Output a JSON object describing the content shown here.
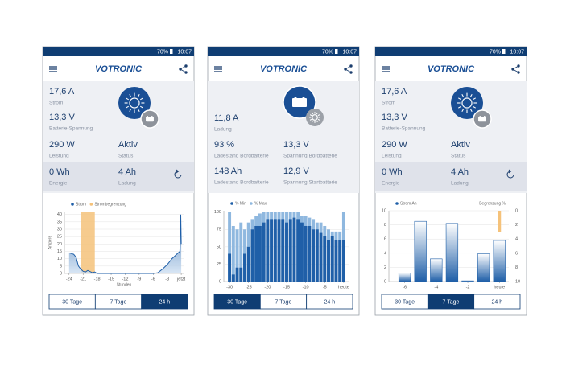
{
  "screens": [
    {
      "status": {
        "battery": "70%",
        "time": "10:07"
      },
      "header": {
        "logo": "VOTRONIC"
      },
      "metrics": [
        {
          "value": "17,6 A",
          "label": "Strom"
        },
        {
          "value": "13,3 V",
          "label": "Batterie-Spannung"
        },
        {
          "value": "290 W",
          "label": "Leistung"
        },
        {
          "value": "Aktiv",
          "label": "Status"
        },
        {
          "value": "0 Wh",
          "label": "Energie"
        },
        {
          "value": "4 Ah",
          "label": "Ladung"
        }
      ],
      "chart": {
        "type": "area",
        "ylabel": "Ampere",
        "xlabel": "Stunden",
        "series": [
          {
            "name": "Strom",
            "color": "#1f5fa8",
            "x": [
              -24,
              -23,
              -22.5,
              -22,
              -21.5,
              -21,
              -20.5,
              -20,
              -19,
              -18.5,
              -18,
              -15,
              -12,
              -9,
              -6,
              -5,
              -4,
              -3,
              -2,
              -1,
              -0.3,
              -0.1,
              0
            ],
            "values": [
              14,
              13,
              11,
              5,
              3,
              1.5,
              1,
              2,
              0.5,
              1,
              0,
              0,
              0,
              0,
              0,
              0.5,
              3,
              6,
              10,
              13,
              15,
              40,
              20
            ]
          }
        ],
        "band": {
          "name": "Strombegrenzung",
          "color": "#f5c27a",
          "x": [
            -21.5,
            -18.5
          ]
        },
        "xlim": [
          -25,
          0.5
        ],
        "xticks": [
          -24,
          -21,
          -18,
          -15,
          -12,
          -9,
          -6,
          -3,
          {
            "value": 0,
            "label": "jetzt"
          }
        ],
        "ylim": [
          0,
          42
        ],
        "yticks": [
          0,
          5,
          10,
          15,
          20,
          25,
          30,
          35,
          40
        ],
        "grid": true
      },
      "tabs": [
        "30 Tage",
        "7 Tage",
        "24 h"
      ],
      "active_tab": 2
    },
    {
      "status": {
        "battery": "70%",
        "time": "10:07"
      },
      "header": {
        "logo": "VOTRONIC"
      },
      "metrics": [
        {
          "value": "11,8 A",
          "label": "Ladung"
        },
        {
          "value": "93 %",
          "label": "Ladestand Bordbatterie"
        },
        {
          "value": "13,3 V",
          "label": "Spannung Bordbatterie"
        },
        {
          "value": "148 Ah",
          "label": "Ladestand Bordbatterie"
        },
        {
          "value": "12,9 V",
          "label": "Spannung Startbatterie"
        }
      ],
      "chart": {
        "type": "bar",
        "x": [
          -30,
          -29,
          -28,
          -27,
          -26,
          -25,
          -24,
          -23,
          -22,
          -21,
          -20,
          -19,
          -18,
          -17,
          -16,
          -15,
          -14,
          -13,
          -12,
          -11,
          -10,
          -9,
          -8,
          -7,
          -6,
          -5,
          -4,
          -3,
          -2,
          -1,
          0
        ],
        "series": [
          {
            "name": "% Min",
            "color": "#1f5fa8",
            "values": [
              40,
              10,
              20,
              20,
              40,
              50,
              75,
              80,
              80,
              85,
              90,
              90,
              90,
              90,
              90,
              85,
              90,
              92,
              90,
              85,
              80,
              80,
              75,
              75,
              70,
              65,
              60,
              65,
              60,
              60,
              60
            ]
          },
          {
            "name": "% Max",
            "color": "#8fb8df",
            "values": [
              100,
              80,
              75,
              85,
              75,
              85,
              90,
              95,
              98,
              100,
              100,
              100,
              100,
              100,
              100,
              100,
              100,
              100,
              100,
              95,
              95,
              92,
              90,
              85,
              85,
              80,
              75,
              72,
              72,
              72,
              100
            ]
          }
        ],
        "xlim": [
          -31.5,
          1.5
        ],
        "xticks": [
          -30,
          -25,
          -20,
          -15,
          -10,
          -5,
          {
            "value": 0,
            "label": "heute"
          }
        ],
        "ylim": [
          0,
          102
        ],
        "yticks": [
          0,
          25,
          50,
          75,
          100
        ],
        "grid": true
      },
      "tabs": [
        "30 Tage",
        "7 Tage",
        "24 h"
      ],
      "active_tab": 0
    },
    {
      "status": {
        "battery": "70%",
        "time": "10:07"
      },
      "header": {
        "logo": "VOTRONIC"
      },
      "metrics": [
        {
          "value": "17,6 A",
          "label": "Strom"
        },
        {
          "value": "13,3 V",
          "label": "Batterie-Spannung"
        },
        {
          "value": "290 W",
          "label": "Leistung"
        },
        {
          "value": "Aktiv",
          "label": "Status"
        },
        {
          "value": "0 Wh",
          "label": "Energie"
        },
        {
          "value": "4 Ah",
          "label": "Ladung"
        }
      ],
      "chart": {
        "type": "bar",
        "x": [
          -6,
          -5,
          -4,
          -3,
          -2,
          -1,
          0
        ],
        "series": [
          {
            "name": "Strom Ah",
            "color": "#1f5fa8",
            "values": [
              1.2,
              8.5,
              3.2,
              8.2,
              0.1,
              3.9,
              5.8
            ]
          },
          {
            "name": "Begrenzung %",
            "color": "#f5c27a",
            "axis": "y2",
            "values": [
              null,
              null,
              null,
              null,
              null,
              null,
              3
            ]
          }
        ],
        "xlim": [
          -7,
          0.6
        ],
        "xticks": [
          -6,
          -4,
          -2,
          {
            "value": 0,
            "label": "heute"
          }
        ],
        "ylim": [
          0,
          10
        ],
        "yticks": [
          0,
          2,
          4,
          6,
          8,
          10
        ],
        "y2lim": [
          10,
          0
        ],
        "y2ticks": [
          0,
          2,
          4,
          6,
          8,
          10
        ],
        "grid": true
      },
      "tabs": [
        "30 Tage",
        "7 Tage",
        "24 h"
      ],
      "active_tab": 1
    }
  ]
}
